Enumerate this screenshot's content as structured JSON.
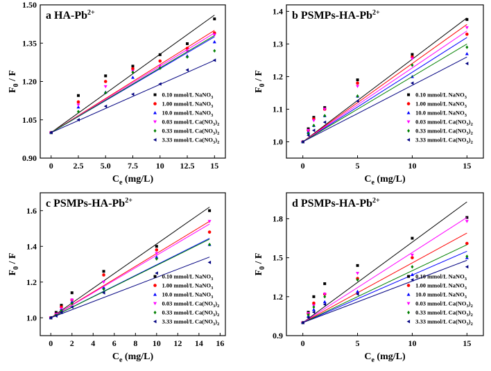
{
  "colors": {
    "s1": "#000000",
    "s2": "#ff0000",
    "s3": "#0000ff",
    "s4": "#ff00ff",
    "s5": "#008000",
    "s6": "#000080"
  },
  "markers": [
    "square",
    "circle",
    "triangle-up",
    "triangle-down",
    "diamond",
    "triangle-left"
  ],
  "chart_data": [
    {
      "type": "scatter",
      "title_letter": "a",
      "title_main": "HA-Pb",
      "title_sup": "2+",
      "xlabel_main": "C",
      "xlabel_sub": "e",
      "xlabel_unit": " (mg/L)",
      "ylabel_main": "F",
      "ylabel_sub": "0",
      "ylabel_rest": " / F",
      "xlim": [
        -1,
        16
      ],
      "ylim": [
        0.9,
        1.5
      ],
      "xticks": [
        0,
        2.5,
        5,
        7.5,
        10,
        12.5,
        15
      ],
      "xtick_labels": [
        "0",
        "2.5",
        "5.0",
        "7.5",
        "10",
        "12.5",
        "15"
      ],
      "yticks": [
        0.9,
        1.05,
        1.2,
        1.35,
        1.5
      ],
      "ytick_labels": [
        "0.90",
        "1.05",
        "1.20",
        "1.35",
        "1.50"
      ],
      "series": [
        {
          "name": "0.10 mmol/L NaNO3",
          "x": [
            0,
            2.5,
            5,
            7.5,
            10,
            12.5,
            15
          ],
          "y": [
            1.0,
            1.145,
            1.222,
            1.26,
            1.305,
            1.348,
            1.445
          ],
          "fit_end": 1.46
        },
        {
          "name": "1.00 mmol/L NaNO3",
          "x": [
            0,
            2.5,
            5,
            7.5,
            10,
            12.5,
            15
          ],
          "y": [
            1.0,
            1.12,
            1.2,
            1.25,
            1.28,
            1.33,
            1.39
          ],
          "fit_end": 1.4
        },
        {
          "name": "10.0 mmol/L NaNO3",
          "x": [
            0,
            2.5,
            5,
            7.5,
            10,
            12.5,
            15
          ],
          "y": [
            1.0,
            1.1,
            1.158,
            1.216,
            1.255,
            1.3,
            1.355
          ],
          "fit_end": 1.375
        },
        {
          "name": "0.03 mmol/L Ca(NO3)2",
          "x": [
            0,
            2.5,
            5,
            7.5,
            10,
            12.5,
            15
          ],
          "y": [
            1.0,
            1.108,
            1.18,
            1.24,
            1.26,
            1.318,
            1.382
          ],
          "fit_end": 1.39
        },
        {
          "name": "0.33 mmol/L Ca(NO3)2",
          "x": [
            0,
            2.5,
            5,
            7.5,
            10,
            12.5,
            15
          ],
          "y": [
            1.0,
            1.082,
            1.156,
            1.236,
            1.252,
            1.296,
            1.32
          ],
          "fit_end": 1.38
        },
        {
          "name": "3.33 mmol/L Ca(NO3)2",
          "x": [
            0,
            2.5,
            5,
            7.5,
            10,
            12.5,
            15
          ],
          "y": [
            1.0,
            1.05,
            1.103,
            1.15,
            1.19,
            1.245,
            1.283
          ],
          "fit_end": 1.283
        }
      ]
    },
    {
      "type": "scatter",
      "title_letter": "b",
      "title_main": "PSMPs-HA-Pb",
      "title_sup": "2+",
      "xlabel_main": "C",
      "xlabel_sub": "e",
      "xlabel_unit": " (mg/L)",
      "ylabel_main": "F",
      "ylabel_sub": "0",
      "ylabel_rest": " / F",
      "xlim": [
        -1.5,
        16.5
      ],
      "ylim": [
        0.95,
        1.42
      ],
      "xticks": [
        0,
        5,
        10,
        15
      ],
      "xtick_labels": [
        "0",
        "5",
        "10",
        "15"
      ],
      "yticks": [
        1.0,
        1.1,
        1.2,
        1.3,
        1.4
      ],
      "ytick_labels": [
        "1.0",
        "1.1",
        "1.2",
        "1.3",
        "1.4"
      ],
      "series": [
        {
          "name": "0.10 mmol/L NaNO3",
          "x": [
            0,
            0.5,
            1,
            2,
            5,
            10,
            15
          ],
          "y": [
            1.0,
            1.04,
            1.075,
            1.105,
            1.19,
            1.268,
            1.375
          ],
          "fit_end": 1.38
        },
        {
          "name": "1.00 mmol/L NaNO3",
          "x": [
            0,
            0.5,
            1,
            2,
            5,
            10,
            15
          ],
          "y": [
            1.0,
            1.035,
            1.07,
            1.1,
            1.18,
            1.26,
            1.33
          ],
          "fit_end": 1.36
        },
        {
          "name": "10.0 mmol/L NaNO3",
          "x": [
            0,
            0.5,
            1,
            2,
            5,
            10,
            15
          ],
          "y": [
            1.0,
            1.03,
            1.05,
            1.08,
            1.14,
            1.2,
            1.27
          ],
          "fit_end": 1.32
        },
        {
          "name": "0.03 mmol/L Ca(NO3)2",
          "x": [
            0,
            0.5,
            1,
            2,
            5,
            10,
            15
          ],
          "y": [
            1.0,
            1.035,
            1.065,
            1.1,
            1.17,
            1.255,
            1.35
          ],
          "fit_end": 1.34
        },
        {
          "name": "0.33 mmol/L Ca(NO3)2",
          "x": [
            0,
            0.5,
            1,
            2,
            5,
            10,
            15
          ],
          "y": [
            1.0,
            1.025,
            1.05,
            1.08,
            1.14,
            1.235,
            1.29
          ],
          "fit_end": 1.3
        },
        {
          "name": "3.33 mmol/L Ca(NO3)2",
          "x": [
            0,
            0.5,
            1,
            2,
            5,
            10,
            15
          ],
          "y": [
            1.0,
            1.02,
            1.035,
            1.06,
            1.125,
            1.18,
            1.24
          ],
          "fit_end": 1.26
        }
      ]
    },
    {
      "type": "scatter",
      "title_letter": "c",
      "title_main": "PSMPs-HA-Pb",
      "title_sup": "2+",
      "xlabel_main": "C",
      "xlabel_sub": "e",
      "xlabel_unit": " (mg/L)",
      "ylabel_main": "F",
      "ylabel_sub": "0",
      "ylabel_rest": " / F",
      "xlim": [
        -1,
        16.5
      ],
      "ylim": [
        0.9,
        1.7
      ],
      "xticks": [
        0,
        2,
        4,
        6,
        8,
        10,
        12,
        14,
        16
      ],
      "xtick_labels": [
        "0",
        "2",
        "4",
        "6",
        "8",
        "10",
        "12",
        "14",
        "16"
      ],
      "yticks": [
        1.0,
        1.2,
        1.4,
        1.6
      ],
      "ytick_labels": [
        "1.0",
        "1.2",
        "1.4",
        "1.6"
      ],
      "series": [
        {
          "name": "0.10 mmol/L NaNO3",
          "x": [
            0,
            0.5,
            1,
            2,
            5,
            10,
            15
          ],
          "y": [
            1.0,
            1.03,
            1.07,
            1.14,
            1.26,
            1.4,
            1.6
          ],
          "fit_end": 1.62
        },
        {
          "name": "1.00 mmol/L NaNO3",
          "x": [
            0,
            0.5,
            1,
            2,
            5,
            10,
            15
          ],
          "y": [
            1.0,
            1.02,
            1.06,
            1.1,
            1.24,
            1.38,
            1.48
          ],
          "fit_end": 1.54
        },
        {
          "name": "10.0 mmol/L NaNO3",
          "x": [
            0,
            0.5,
            1,
            2,
            5,
            10,
            15
          ],
          "y": [
            1.0,
            1.02,
            1.05,
            1.09,
            1.17,
            1.34,
            1.41
          ],
          "fit_end": 1.445
        },
        {
          "name": "0.03 mmol/L Ca(NO3)2",
          "x": [
            0,
            0.5,
            1,
            2,
            5,
            10,
            15
          ],
          "y": [
            1.0,
            1.02,
            1.05,
            1.1,
            1.2,
            1.36,
            1.54
          ],
          "fit_end": 1.525
        },
        {
          "name": "0.33 mmol/L Ca(NO3)2",
          "x": [
            0,
            0.5,
            1,
            2,
            5,
            10,
            15
          ],
          "y": [
            1.0,
            1.015,
            1.04,
            1.08,
            1.16,
            1.33,
            1.41
          ],
          "fit_end": 1.44
        },
        {
          "name": "3.33 mmol/L Ca(NO3)2",
          "x": [
            0,
            0.5,
            1,
            2,
            5,
            10,
            15
          ],
          "y": [
            1.0,
            1.01,
            1.03,
            1.06,
            1.14,
            1.25,
            1.31
          ],
          "fit_end": 1.34
        }
      ]
    },
    {
      "type": "scatter",
      "title_letter": "d",
      "title_main": "PSMPs-HA-Pb",
      "title_sup": "2+",
      "xlabel_main": "C",
      "xlabel_sub": "e",
      "xlabel_unit": " (mg/L)",
      "ylabel_main": "F",
      "ylabel_sub": "0",
      "ylabel_rest": " / F",
      "xlim": [
        -1.5,
        16.5
      ],
      "ylim": [
        0.9,
        2.0
      ],
      "xticks": [
        0,
        5,
        10,
        15
      ],
      "xtick_labels": [
        "0",
        "5",
        "10",
        "15"
      ],
      "yticks": [
        0.9,
        1.2,
        1.5,
        1.8
      ],
      "ytick_labels": [
        "0.9",
        "1.2",
        "1.5",
        "1.8"
      ],
      "series": [
        {
          "name": "0.10 mmol/L NaNO3",
          "x": [
            0,
            0.5,
            1,
            2,
            5,
            10,
            15
          ],
          "y": [
            1.0,
            1.08,
            1.2,
            1.3,
            1.44,
            1.65,
            1.81
          ],
          "fit_end": 1.93
        },
        {
          "name": "1.00 mmol/L NaNO3",
          "x": [
            0,
            0.5,
            1,
            2,
            5,
            10,
            15
          ],
          "y": [
            1.0,
            1.07,
            1.15,
            1.22,
            1.34,
            1.5,
            1.61
          ],
          "fit_end": 1.69
        },
        {
          "name": "10.0 mmol/L NaNO3",
          "x": [
            0,
            0.5,
            1,
            2,
            5,
            10,
            15
          ],
          "y": [
            1.0,
            1.05,
            1.1,
            1.16,
            1.24,
            1.37,
            1.5
          ],
          "fit_end": 1.55
        },
        {
          "name": "0.03 mmol/L Ca(NO3)2",
          "x": [
            0,
            0.5,
            1,
            2,
            5,
            10,
            15
          ],
          "y": [
            1.0,
            1.07,
            1.13,
            1.22,
            1.38,
            1.52,
            1.78
          ],
          "fit_end": 1.81
        },
        {
          "name": "0.33 mmol/L Ca(NO3)2",
          "x": [
            0,
            0.5,
            1,
            2,
            5,
            10,
            15
          ],
          "y": [
            1.0,
            1.06,
            1.12,
            1.2,
            1.33,
            1.43,
            1.51
          ],
          "fit_end": 1.6
        },
        {
          "name": "3.33 mmol/L Ca(NO3)2",
          "x": [
            0,
            0.5,
            1,
            2,
            5,
            10,
            15
          ],
          "y": [
            1.0,
            1.04,
            1.08,
            1.14,
            1.22,
            1.33,
            1.43
          ],
          "fit_end": 1.48
        }
      ]
    }
  ]
}
